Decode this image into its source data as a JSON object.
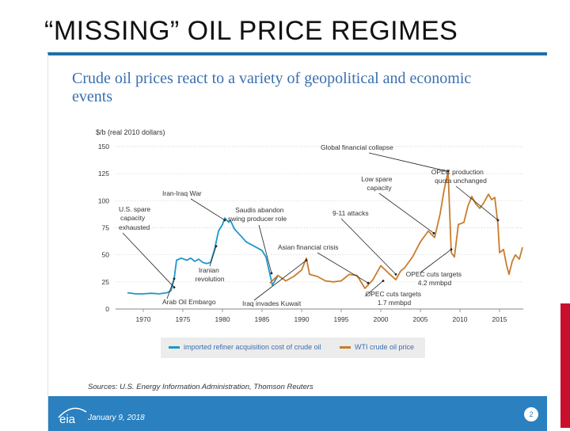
{
  "slide": {
    "title": "“MISSING” OIL PRICE REGIMES",
    "headline": "Crude oil prices react to a variety of geopolitical and economic events",
    "sources": "Sources: U.S. Energy Information Administration, Thomson Reuters",
    "date": "January 9, 2018",
    "page_number": "2",
    "logo_text": "eia"
  },
  "colors": {
    "accent_red": "#c8102e",
    "footer_blue": "#2b80bf",
    "series_blue": "#1e97c9",
    "series_orange": "#c77d2e"
  },
  "chart_data": {
    "type": "line",
    "ylabel": "$/b (real 2010 dollars)",
    "xlim": [
      1966.5,
      2018
    ],
    "ylim": [
      0,
      150
    ],
    "y_ticks": [
      0,
      25,
      50,
      75,
      100,
      125,
      150
    ],
    "x_ticks": [
      1970,
      1975,
      1980,
      1985,
      1990,
      1995,
      2000,
      2005,
      2010,
      2015
    ],
    "legend": [
      "imported refiner acquisition cost of crude oil",
      "WTI crude oil price"
    ],
    "series": [
      {
        "name": "imported refiner acquisition cost of crude oil",
        "color": "#1e97c9",
        "points": [
          [
            1968,
            15
          ],
          [
            1969,
            14
          ],
          [
            1970,
            14
          ],
          [
            1971,
            14.5
          ],
          [
            1972,
            14
          ],
          [
            1973,
            15
          ],
          [
            1973.5,
            17
          ],
          [
            1973.9,
            28
          ],
          [
            1974.2,
            45
          ],
          [
            1974.8,
            47
          ],
          [
            1975.5,
            45
          ],
          [
            1976,
            47
          ],
          [
            1976.5,
            44
          ],
          [
            1977,
            46
          ],
          [
            1977.5,
            43
          ],
          [
            1978,
            42
          ],
          [
            1978.5,
            43
          ],
          [
            1979,
            55
          ],
          [
            1979.5,
            72
          ],
          [
            1980,
            78
          ],
          [
            1980.3,
            84
          ],
          [
            1980.8,
            80
          ],
          [
            1981,
            82
          ],
          [
            1981.5,
            74
          ],
          [
            1982,
            70
          ],
          [
            1983,
            62
          ],
          [
            1984,
            58
          ],
          [
            1985,
            54
          ],
          [
            1985.5,
            48
          ],
          [
            1986,
            32
          ],
          [
            1986.3,
            22
          ],
          [
            1986.8,
            28
          ],
          [
            1987,
            31
          ]
        ]
      },
      {
        "name": "WTI crude oil price",
        "color": "#c77d2e",
        "points": [
          [
            1986,
            24
          ],
          [
            1987,
            31
          ],
          [
            1988,
            26
          ],
          [
            1989,
            30
          ],
          [
            1990,
            36
          ],
          [
            1990.6,
            47
          ],
          [
            1991,
            32
          ],
          [
            1992,
            30
          ],
          [
            1993,
            26
          ],
          [
            1994,
            25
          ],
          [
            1995,
            26
          ],
          [
            1996,
            32
          ],
          [
            1997,
            31
          ],
          [
            1998,
            19
          ],
          [
            1999,
            27
          ],
          [
            2000,
            40
          ],
          [
            2001,
            33
          ],
          [
            2001.9,
            27
          ],
          [
            2002.5,
            35
          ],
          [
            2003,
            38
          ],
          [
            2004,
            48
          ],
          [
            2005,
            62
          ],
          [
            2006,
            72
          ],
          [
            2006.8,
            66
          ],
          [
            2007.5,
            88
          ],
          [
            2008,
            110
          ],
          [
            2008.5,
            127
          ],
          [
            2008.9,
            52
          ],
          [
            2009.3,
            48
          ],
          [
            2009.8,
            78
          ],
          [
            2010.5,
            80
          ],
          [
            2011,
            95
          ],
          [
            2011.5,
            104
          ],
          [
            2012,
            97
          ],
          [
            2012.5,
            93
          ],
          [
            2013,
            98
          ],
          [
            2013.6,
            106
          ],
          [
            2014,
            101
          ],
          [
            2014.4,
            103
          ],
          [
            2014.8,
            78
          ],
          [
            2015,
            52
          ],
          [
            2015.5,
            55
          ],
          [
            2015.9,
            40
          ],
          [
            2016.2,
            32
          ],
          [
            2016.6,
            44
          ],
          [
            2017,
            50
          ],
          [
            2017.5,
            46
          ],
          [
            2017.9,
            57
          ]
        ]
      }
    ],
    "annotations": {
      "global_financial_collapse": "Global financial collapse",
      "opec_production": "OPEC production quota unchanged",
      "low_spare": "Low spare capacity",
      "iran_iraq": "Iran-Iraq War",
      "us_spare": "U.S. spare capacity exhausted",
      "saudis": "Saudis abandon swing producer role",
      "nine_eleven": "9-11 attacks",
      "asian": "Asian financial crisis",
      "iranian": "Iranian revolution",
      "opec_cuts_42": "OPEC cuts targets 4.2 mmbpd",
      "opec_cuts_17": "OPEC cuts targets 1.7 mmbpd",
      "arab_embargo": "Arab Oil Embargo",
      "iraq_kuwait": "Iraq invades Kuwait"
    }
  }
}
